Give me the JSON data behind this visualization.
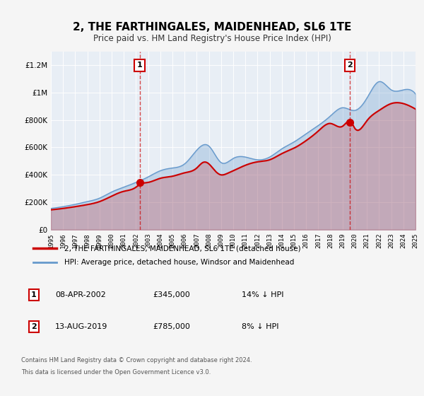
{
  "title": "2, THE FARTHINGALES, MAIDENHEAD, SL6 1TE",
  "subtitle": "Price paid vs. HM Land Registry's House Price Index (HPI)",
  "bg_color": "#f0f4f8",
  "plot_bg_color": "#e8eef4",
  "grid_color": "#ffffff",
  "red_line_color": "#cc0000",
  "blue_line_color": "#6699cc",
  "marker1_date_idx": 7.33,
  "marker2_date_idx": 24.67,
  "marker1_label": "1",
  "marker2_label": "2",
  "annotation1": "08-APR-2002    £345,000    14% ↓ HPI",
  "annotation2": "13-AUG-2019    £785,000    8% ↓ HPI",
  "legend_label1": "2, THE FARTHINGALES, MAIDENHEAD, SL6 1TE (detached house)",
  "legend_label2": "HPI: Average price, detached house, Windsor and Maidenhead",
  "footer1": "Contains HM Land Registry data © Crown copyright and database right 2024.",
  "footer2": "This data is licensed under the Open Government Licence v3.0.",
  "ylim": [
    0,
    1300000
  ],
  "yticks": [
    0,
    200000,
    400000,
    600000,
    800000,
    1000000,
    1200000
  ],
  "ytick_labels": [
    "£0",
    "£200K",
    "£400K",
    "£600K",
    "£800K",
    "£1M",
    "£1.2M"
  ],
  "year_start": 1995,
  "year_end": 2025,
  "hpi_years": [
    1995,
    1996,
    1997,
    1998,
    1999,
    2000,
    2001,
    2002,
    2003,
    2004,
    2005,
    2006,
    2007,
    2008,
    2009,
    2010,
    2011,
    2012,
    2013,
    2014,
    2015,
    2016,
    2017,
    2018,
    2019,
    2020,
    2021,
    2022,
    2023,
    2024,
    2025
  ],
  "hpi_values": [
    155000,
    168000,
    185000,
    205000,
    230000,
    275000,
    310000,
    345000,
    385000,
    430000,
    450000,
    480000,
    580000,
    610000,
    490000,
    520000,
    530000,
    510000,
    530000,
    590000,
    640000,
    700000,
    760000,
    830000,
    890000,
    870000,
    960000,
    1080000,
    1020000,
    1020000,
    990000
  ],
  "red_years": [
    1995,
    1996,
    1997,
    1998,
    1999,
    2000,
    2001,
    2002,
    2002.3,
    2003,
    2004,
    2005,
    2006,
    2007,
    2007.5,
    2008,
    2008.5,
    2009,
    2009.5,
    2010,
    2011,
    2012,
    2013,
    2014,
    2015,
    2016,
    2017,
    2018,
    2019,
    2019.7,
    2020,
    2021,
    2022,
    2023,
    2024,
    2025
  ],
  "red_values": [
    145000,
    155000,
    168000,
    183000,
    205000,
    245000,
    280000,
    310000,
    330000,
    345000,
    375000,
    390000,
    415000,
    450000,
    490000,
    480000,
    430000,
    400000,
    410000,
    430000,
    470000,
    495000,
    510000,
    555000,
    595000,
    650000,
    720000,
    775000,
    755000,
    785000,
    740000,
    795000,
    870000,
    920000,
    920000,
    880000
  ]
}
